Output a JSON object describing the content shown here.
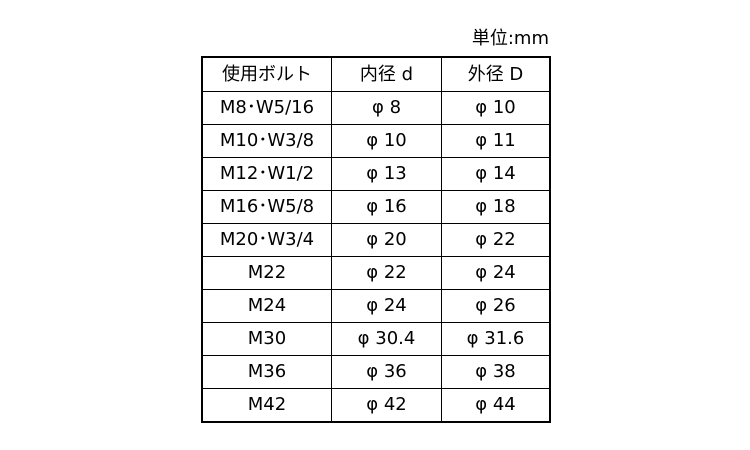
{
  "unit_label": "単位:mm",
  "table": {
    "header": [
      "使用ボルト",
      "内径 d",
      "外径 D"
    ],
    "rows": [
      [
        "M8･W5/16",
        "φ 8",
        "φ 10"
      ],
      [
        "M10･W3/8",
        "φ 10",
        "φ 11"
      ],
      [
        "M12･W1/2",
        "φ 13",
        "φ 14"
      ],
      [
        "M16･W5/8",
        "φ 16",
        "φ 18"
      ],
      [
        "M20･W3/4",
        "φ 20",
        "φ 22"
      ],
      [
        "M22",
        "φ 22",
        "φ 24"
      ],
      [
        "M24",
        "φ 24",
        "φ 26"
      ],
      [
        "M30",
        "φ 30.4",
        "φ 31.6"
      ],
      [
        "M36",
        "φ 36",
        "φ 38"
      ],
      [
        "M42",
        "φ 42",
        "φ 44"
      ]
    ]
  }
}
